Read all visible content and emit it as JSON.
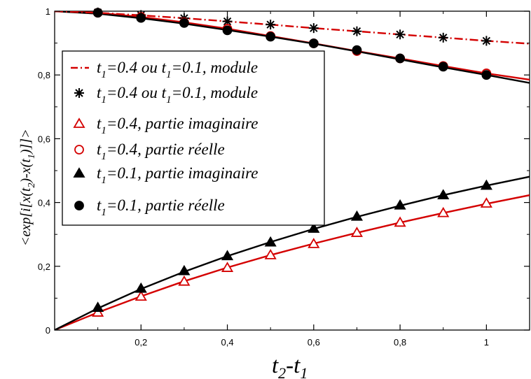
{
  "chart_data": {
    "type": "line",
    "xlabel": {
      "a": "t",
      "a_sub": "2",
      "b": "-t",
      "b_sub": "1"
    },
    "ylabel": {
      "p1": "<exp[i[x(t",
      "s1": "2",
      "p2": ")-x(t",
      "s2": "1",
      "p3": ")]]>"
    },
    "xlim": [
      0,
      1.1
    ],
    "ylim": [
      0,
      1.0
    ],
    "x_ticks": [
      "0,2",
      "0,4",
      "0,6",
      "0,8",
      "1"
    ],
    "y_ticks": [
      "0",
      "0,2",
      "0,4",
      "0,6",
      "0,8",
      "1"
    ],
    "grid": false,
    "legend_position": "top-left",
    "series": [
      {
        "key": "mod_line",
        "style": "dashdot-line",
        "color": "#d40000",
        "legend": {
          "pre": "t",
          "sub1": "1",
          "mid": "=0.4 ou  t",
          "sub2": "1",
          "post": "=0.1, module"
        },
        "x": [
          0,
          0.1,
          0.2,
          0.3,
          0.4,
          0.5,
          0.6,
          0.7,
          0.8,
          0.9,
          1.0,
          1.1
        ],
        "y": [
          1.0,
          0.995,
          0.987,
          0.978,
          0.968,
          0.958,
          0.947,
          0.937,
          0.927,
          0.917,
          0.907,
          0.898
        ]
      },
      {
        "key": "mod_star",
        "style": "star",
        "color": "#000000",
        "legend": {
          "pre": "t",
          "sub1": "1",
          "mid": "=0.4 ou t",
          "sub2": "1",
          "post": "=0.1, module"
        },
        "x": [
          0.1,
          0.2,
          0.3,
          0.4,
          0.5,
          0.6,
          0.7,
          0.8,
          0.9,
          1.0
        ],
        "y": [
          0.996,
          0.988,
          0.978,
          0.968,
          0.958,
          0.947,
          0.937,
          0.927,
          0.917,
          0.907
        ]
      },
      {
        "key": "im04_tri",
        "style": "triangle-open",
        "color": "#d40000",
        "legend": {
          "pre": "t",
          "sub1": "1",
          "mid": "=0.4, partie imaginaire",
          "sub2": "",
          "post": ""
        },
        "x": [
          0.1,
          0.2,
          0.3,
          0.4,
          0.5,
          0.6,
          0.7,
          0.8,
          0.9,
          1.0
        ],
        "y": [
          0.055,
          0.105,
          0.152,
          0.195,
          0.235,
          0.27,
          0.305,
          0.337,
          0.367,
          0.397
        ]
      },
      {
        "key": "re04_circ",
        "style": "circle-open",
        "color": "#d40000",
        "legend": {
          "pre": "t",
          "sub1": "1",
          "mid": "=0.4, partie réelle",
          "sub2": "",
          "post": ""
        },
        "x": [
          0.1,
          0.2,
          0.3,
          0.4,
          0.5,
          0.6,
          0.7,
          0.8,
          0.9,
          1.0
        ],
        "y": [
          0.995,
          0.982,
          0.965,
          0.945,
          0.922,
          0.899,
          0.875,
          0.852,
          0.828,
          0.805
        ]
      },
      {
        "key": "im01_tri",
        "style": "triangle-filled",
        "color": "#000000",
        "legend": {
          "pre": " t",
          "sub1": "1",
          "mid": "=0.1,  partie imaginaire",
          "sub2": "",
          "post": ""
        },
        "x": [
          0.1,
          0.2,
          0.3,
          0.4,
          0.5,
          0.6,
          0.7,
          0.8,
          0.9,
          1.0
        ],
        "y": [
          0.07,
          0.13,
          0.185,
          0.232,
          0.275,
          0.318,
          0.356,
          0.391,
          0.423,
          0.453
        ]
      },
      {
        "key": "re01_circ",
        "style": "circle-filled",
        "color": "#000000",
        "legend": {
          "pre": " t",
          "sub1": "1",
          "mid": "=0.1, partie réelle",
          "sub2": "",
          "post": ""
        },
        "x": [
          0.1,
          0.2,
          0.3,
          0.4,
          0.5,
          0.6,
          0.7,
          0.8,
          0.9,
          1.0
        ],
        "y": [
          0.995,
          0.979,
          0.963,
          0.94,
          0.92,
          0.899,
          0.878,
          0.852,
          0.826,
          0.8
        ]
      }
    ],
    "fit_curves": [
      {
        "key": "fit_re04",
        "color": "#d40000",
        "x": [
          0,
          0.1,
          0.2,
          0.3,
          0.4,
          0.5,
          0.6,
          0.7,
          0.8,
          0.9,
          1.0,
          1.1
        ],
        "y": [
          1.0,
          0.995,
          0.982,
          0.965,
          0.945,
          0.922,
          0.899,
          0.875,
          0.852,
          0.828,
          0.805,
          0.785
        ]
      },
      {
        "key": "fit_re01",
        "color": "#000000",
        "x": [
          0,
          0.1,
          0.2,
          0.3,
          0.4,
          0.5,
          0.6,
          0.7,
          0.8,
          0.9,
          1.0,
          1.1
        ],
        "y": [
          1.0,
          0.992,
          0.978,
          0.961,
          0.941,
          0.92,
          0.898,
          0.874,
          0.849,
          0.824,
          0.8,
          0.775
        ]
      },
      {
        "key": "fit_im04",
        "color": "#d40000",
        "x": [
          0,
          0.1,
          0.2,
          0.3,
          0.4,
          0.5,
          0.6,
          0.7,
          0.8,
          0.9,
          1.0,
          1.1
        ],
        "y": [
          0,
          0.055,
          0.106,
          0.153,
          0.196,
          0.235,
          0.271,
          0.305,
          0.337,
          0.367,
          0.396,
          0.423
        ]
      },
      {
        "key": "fit_im01",
        "color": "#000000",
        "x": [
          0,
          0.1,
          0.2,
          0.3,
          0.4,
          0.5,
          0.6,
          0.7,
          0.8,
          0.9,
          1.0,
          1.1
        ],
        "y": [
          0,
          0.068,
          0.129,
          0.183,
          0.232,
          0.276,
          0.317,
          0.355,
          0.39,
          0.423,
          0.453,
          0.481
        ]
      }
    ]
  }
}
